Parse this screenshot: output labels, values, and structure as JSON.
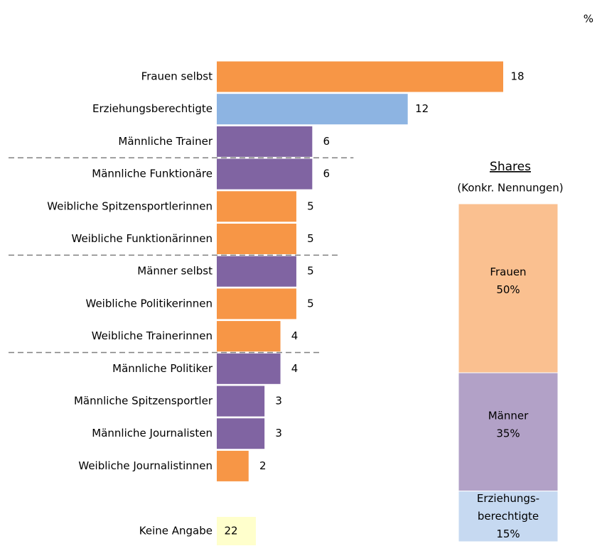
{
  "chart_data": {
    "type": "bar",
    "orientation": "horizontal",
    "unit_label": "%",
    "categories": [
      "Frauen selbst",
      "Erziehungsberechtigte",
      "Männliche Trainer",
      "Männliche Funktionäre",
      "Weibliche Spitzensportlerinnen",
      "Weibliche Funktionärinnen",
      "Männer selbst",
      "Weibliche Politikerinnen",
      "Weibliche Trainerinnen",
      "Männliche Politiker",
      "Männliche Spitzensportler",
      "Männliche Journalisten",
      "Weibliche Journalistinnen"
    ],
    "values": [
      18,
      12,
      6,
      6,
      5,
      5,
      5,
      5,
      4,
      4,
      3,
      3,
      2
    ],
    "colors": [
      "#f79646",
      "#8db4e2",
      "#8064a2",
      "#8064a2",
      "#f79646",
      "#f79646",
      "#8064a2",
      "#f79646",
      "#f79646",
      "#8064a2",
      "#8064a2",
      "#8064a2",
      "#f79646"
    ],
    "separators_after": [
      2,
      5,
      8
    ],
    "no_answer": {
      "label": "Keine Angabe",
      "value": 22,
      "color": "#ffffcc"
    },
    "shares": {
      "title": "Shares",
      "subtitle": "(Konkr. Nennungen)",
      "segments": [
        {
          "name": [
            "Frauen"
          ],
          "value": 50,
          "value_label": "50%",
          "color": "#fac090"
        },
        {
          "name": [
            "Männer"
          ],
          "value": 35,
          "value_label": "35%",
          "color": "#b2a1c7"
        },
        {
          "name": [
            "Erziehungs-",
            "berechtigte"
          ],
          "value": 15,
          "value_label": "15%",
          "color": "#c6d9f1"
        }
      ]
    }
  }
}
